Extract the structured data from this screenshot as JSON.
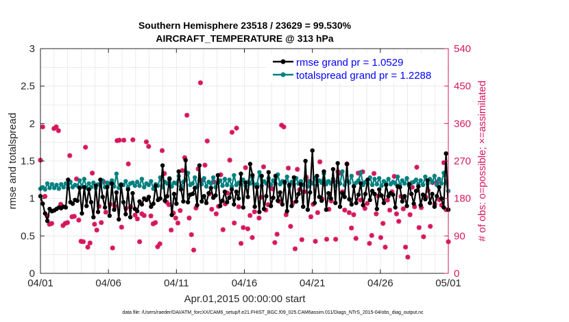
{
  "chart_data": {
    "type": "line",
    "title": "Southern Hemisphere 23518 / 23629 = 99.530%",
    "subtitle": "AIRCRAFT_TEMPERATURE @ 313 hPa",
    "xlabel": "Apr.01,2015 00:00:00 start",
    "ylabel": "rmse and totalspread",
    "y2label": "# of obs: o=possible; ×=assimilated",
    "footnote": "data file: /Users/raeder/DAI/ATM_forcXX/CAM6_setup/f.e21.FHIST_BGC.f09_025.CAM6assim.011/Diags_NTrS_2015-04/obs_diag_output.nc",
    "x_tick_labels": [
      "04/01",
      "04/06",
      "04/11",
      "04/16",
      "04/21",
      "04/26",
      "05/01"
    ],
    "y_tick_labels": [
      "0",
      "0.5",
      "1",
      "1.5",
      "2",
      "2.5",
      "3"
    ],
    "y2_tick_labels": [
      "0",
      "90",
      "180",
      "270",
      "360",
      "450",
      "540"
    ],
    "xlim": [
      0,
      30
    ],
    "ylim": [
      0,
      3
    ],
    "y2lim": [
      0,
      540
    ],
    "grid": true,
    "legend_position": "top-right",
    "colors": {
      "rmse": "#000000",
      "totalspread": "#008080",
      "obs": "#d6175c",
      "axis": "#262626",
      "grid": "#e6e6e6"
    },
    "series": [
      {
        "name": "rmse grand pr = 1.0529",
        "axis": "left",
        "values": [
          1.03,
          0.93,
          0.8,
          0.7,
          0.86,
          0.83,
          0.84,
          0.86,
          0.88,
          0.87,
          0.89,
          0.88,
          1.25,
          0.95,
          0.93,
          0.98,
          0.97,
          1.14,
          0.8,
          1.15,
          0.9,
          1.12,
          0.95,
          0.75,
          1.17,
          0.82,
          1.25,
          1.02,
          0.88,
          1.15,
          0.77,
          1.2,
          0.85,
          1.08,
          0.72,
          1.18,
          0.95,
          0.79,
          1.12,
          0.75,
          1.07,
          0.86,
          0.83,
          0.96,
          0.92,
          1.0,
          0.98,
          1.02,
          0.89,
          0.93,
          1.17,
          0.98,
          1.0,
          1.44,
          0.97,
          1.03,
          1.26,
          0.78,
          1.06,
          0.93,
          1.36,
          1.12,
          0.96,
          1.51,
          0.95,
          1.05,
          1.06,
          1.14,
          0.91,
          1.44,
          0.96,
          1.03,
          0.94,
          1.07,
          1.14,
          1.01,
          1.04,
          1.31,
          0.9,
          0.97,
          1.09,
          0.95,
          1.01,
          1.12,
          0.92,
          1.09,
          1.0,
          1.33,
          0.88,
          1.21,
          1.02,
          1.46,
          1.31,
          0.89,
          1.15,
          0.82,
          1.3,
          0.86,
          1.03,
          1.35,
          0.9,
          1.01,
          1.3,
          0.97,
          1.08,
          0.92,
          1.22,
          0.83,
          1.18,
          0.9,
          1.28,
          0.96,
          1.06,
          1.19,
          0.89,
          1.5,
          0.85,
          1.08,
          1.64,
          0.94,
          1.3,
          1.02,
          0.97,
          1.36,
          0.85,
          1.07,
          1.0,
          1.39,
          0.94,
          1.47,
          0.89,
          1.07,
          1.02,
          1.46,
          0.99,
          0.92,
          1.16,
          0.94,
          1.05,
          1.2,
          0.91,
          1.06,
          1.25,
          0.98,
          1.1,
          1.06,
          0.86,
          1.12,
          1.04,
          0.94,
          1.18,
          1.03,
          1.07,
          1.05,
          0.88,
          1.16,
          1.15,
          0.96,
          1.03,
          0.9,
          1.19,
          1.06,
          0.93,
          1.1,
          1.16,
          0.91,
          1.05,
          0.99,
          1.24,
          0.94,
          1.06,
          0.89,
          1.03,
          1.15,
          1.0,
          0.88,
          1.6,
          0.85
        ]
      },
      {
        "name": "totalspread grand pr = 1.2288",
        "axis": "left",
        "values": [
          1.13,
          1.15,
          1.12,
          1.2,
          1.14,
          1.19,
          1.14,
          1.18,
          1.13,
          1.19,
          1.15,
          1.2,
          1.14,
          1.22,
          1.15,
          1.18,
          1.17,
          1.24,
          1.16,
          1.26,
          1.14,
          1.2,
          1.15,
          1.21,
          1.14,
          1.19,
          1.18,
          1.24,
          1.15,
          1.21,
          1.2,
          1.24,
          1.16,
          1.33,
          1.14,
          1.19,
          1.18,
          1.23,
          1.15,
          1.2,
          1.21,
          1.17,
          1.22,
          1.17,
          1.26,
          1.15,
          1.2,
          1.18,
          1.23,
          1.13,
          1.19,
          1.17,
          1.28,
          1.15,
          1.22,
          1.2,
          1.27,
          1.16,
          1.21,
          1.2,
          1.3,
          1.16,
          1.22,
          1.25,
          1.34,
          1.18,
          1.2,
          1.28,
          1.16,
          1.24,
          1.19,
          1.27,
          1.16,
          1.22,
          1.2,
          1.28,
          1.15,
          1.21,
          1.24,
          1.17,
          1.26,
          1.18,
          1.25,
          1.16,
          1.31,
          1.18,
          1.21,
          1.19,
          1.25,
          1.17,
          1.22,
          1.2,
          1.28,
          1.18,
          1.19,
          1.35,
          1.17,
          1.23,
          1.2,
          1.27,
          1.18,
          1.24,
          1.2,
          1.32,
          1.19,
          1.23,
          1.2,
          1.29,
          1.16,
          1.22,
          1.19,
          1.27,
          1.2,
          1.23,
          1.18,
          1.26,
          1.16,
          1.23,
          1.2,
          1.27,
          1.18,
          1.24,
          1.21,
          1.33,
          1.19,
          1.23,
          1.2,
          1.26,
          1.17,
          1.22,
          1.2,
          1.36,
          1.18,
          1.23,
          1.21,
          1.3,
          1.17,
          1.21,
          1.24,
          1.35,
          1.18,
          1.22,
          1.2,
          1.28,
          1.18,
          1.26,
          1.19,
          1.27,
          1.17,
          1.23,
          1.2,
          1.26,
          1.19,
          1.22,
          1.2,
          1.29,
          1.18,
          1.24,
          1.2,
          1.27,
          1.17,
          1.21,
          1.22,
          1.25,
          1.19,
          1.24,
          1.18,
          1.29,
          1.2,
          1.26,
          1.22,
          1.3,
          1.18,
          1.26,
          1.2,
          1.34,
          1.21,
          1.1
        ]
      },
      {
        "name": "# of obs assimilated",
        "axis": "right",
        "values": [
          272,
          352,
          185,
          138,
          118,
          120,
          348,
          352,
          343,
          166,
          115,
          120,
          122,
          283,
          136,
          137,
          227,
          128,
          77,
          76,
          303,
          63,
          73,
          241,
          118,
          104,
          161,
          122,
          220,
          147,
          215,
          166,
          61,
          161,
          319,
          320,
          111,
          320,
          156,
          263,
          160,
          321,
          140,
          131,
          76,
          143,
          139,
          316,
          305,
          138,
          119,
          122,
          64,
          71,
          295,
          240,
          171,
          165,
          104,
          145,
          133,
          121,
          151,
          247,
          278,
          380,
          133,
          93,
          56,
          157,
          251,
          458,
          224,
          260,
          318,
          191,
          154,
          220,
          143,
          161,
          237,
          105,
          167,
          193,
          272,
          339,
          121,
          349,
          160,
          72,
          110,
          254,
          107,
          139,
          86,
          148,
          208,
          133,
          183,
          256,
          152,
          165,
          209,
          203,
          74,
          94,
          173,
          356,
          352,
          141,
          253,
          113,
          169,
          59,
          250,
          201,
          81,
          196,
          231,
          221,
          136,
          166,
          77,
          146,
          268,
          179,
          214,
          82,
          154,
          174,
          222,
          82,
          244,
          241,
          196,
          152,
          263,
          146,
          109,
          141,
          84,
          241,
          176,
          244,
          156,
          168,
          72,
          91,
          240,
          143,
          186,
          86,
          120,
          63,
          176,
          152,
          196,
          233,
          143,
          125,
          185,
          155,
          63,
          39,
          141,
          207,
          160,
          255,
          110,
          158,
          88,
          183,
          199,
          113,
          218,
          166,
          219,
          177,
          164,
          266,
          153,
          76
        ]
      }
    ]
  }
}
